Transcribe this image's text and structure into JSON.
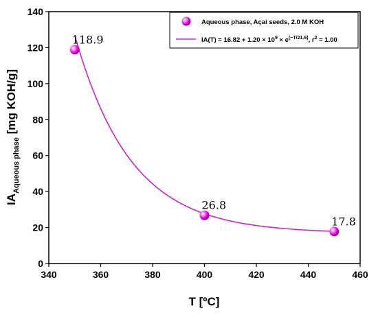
{
  "chart_data": {
    "type": "scatter",
    "title": "",
    "xlabel": "T [ºC]",
    "ylabel_main": "IA",
    "ylabel_sub": "Aqueous phase",
    "ylabel_unit": " [mg KOH/g]",
    "xlim": [
      340,
      460
    ],
    "ylim": [
      0,
      140
    ],
    "xticks": [
      340,
      360,
      380,
      400,
      420,
      440,
      460
    ],
    "yticks": [
      0,
      20,
      40,
      60,
      80,
      100,
      120,
      140
    ],
    "grid": false,
    "legend_position": "top-right",
    "series": [
      {
        "name": "Aqueous phase, Açai seeds, 2.0 M KOH",
        "kind": "scatter",
        "color": "#e020e0",
        "x": [
          350,
          400,
          450
        ],
        "y": [
          118.9,
          26.8,
          17.8
        ],
        "labels": [
          "118.9",
          "26.8",
          "17.8"
        ]
      },
      {
        "name": "IA(T) = 16.82 + 1.20 × 10⁹ × e^(−T/21.6), r² = 1.00",
        "kind": "fit-line",
        "color": "#cc22cc",
        "model": {
          "a": 16.82,
          "b": 1200000000.0,
          "c": 21.6
        }
      }
    ],
    "legend": {
      "scatter_label": "Aqueous phase, Açai seeds, 2.0 M KOH",
      "fit_prefix": "IA(T) = 16.82 + 1.20 × 10",
      "fit_pow10": "9",
      "fit_mid": " × e",
      "fit_exp": "(−T/21.6)",
      "fit_r": ", r",
      "fit_r_sup": "2",
      "fit_end": " = 1.00"
    }
  }
}
